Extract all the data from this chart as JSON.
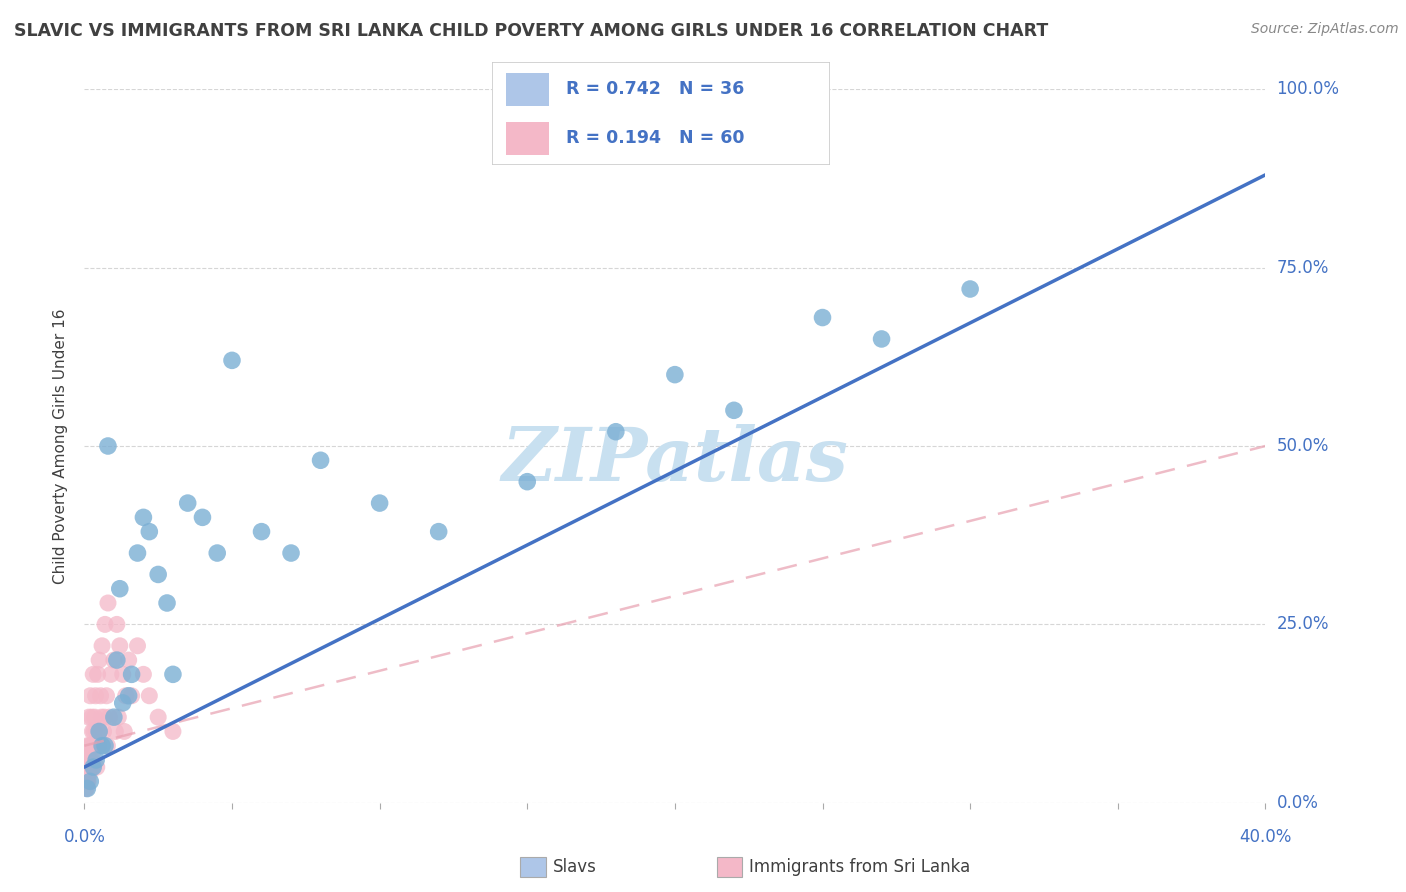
{
  "title": "SLAVIC VS IMMIGRANTS FROM SRI LANKA CHILD POVERTY AMONG GIRLS UNDER 16 CORRELATION CHART",
  "source": "Source: ZipAtlas.com",
  "ylabel": "Child Poverty Among Girls Under 16",
  "ytick_labels": [
    "0.0%",
    "25.0%",
    "50.0%",
    "75.0%",
    "100.0%"
  ],
  "ytick_values": [
    0,
    25,
    50,
    75,
    100
  ],
  "xlim": [
    0,
    40
  ],
  "ylim": [
    0,
    100
  ],
  "slavs_color": "#7bafd4",
  "slavs_edge": "#7bafd4",
  "srilanka_color": "#f4b8c8",
  "srilanka_edge": "#f4b8c8",
  "trend_slavs_color": "#4472c4",
  "trend_srilanka_color": "#e8a0b0",
  "watermark": "ZIPatlas",
  "watermark_color": "#c8e0f0",
  "title_color": "#404040",
  "axis_label_color": "#4472c4",
  "source_color": "#888888",
  "ylabel_color": "#404040",
  "legend_box_color": "#cccccc",
  "legend_text_color": "#4472c4",
  "legend_sq1_color": "#aec6e8",
  "legend_sq2_color": "#f4b8c8",
  "bottom_legend_sq1": "#aec6e8",
  "bottom_legend_sq2": "#f4b8c8",
  "grid_color": "#cccccc",
  "slavs_x": [
    0.3,
    0.5,
    0.6,
    0.8,
    1.0,
    1.2,
    1.5,
    1.8,
    2.0,
    2.2,
    2.5,
    3.0,
    3.5,
    4.0,
    5.0,
    6.0,
    7.0,
    8.0,
    10.0,
    12.0,
    15.0,
    18.0,
    20.0,
    22.0,
    25.0,
    27.0,
    30.0,
    0.2,
    0.4,
    0.7,
    1.1,
    1.3,
    1.6,
    2.8,
    4.5,
    0.1
  ],
  "slavs_y": [
    5,
    10,
    8,
    50,
    12,
    30,
    15,
    35,
    40,
    38,
    32,
    18,
    42,
    40,
    62,
    38,
    35,
    48,
    42,
    38,
    45,
    52,
    60,
    55,
    68,
    65,
    72,
    3,
    6,
    8,
    20,
    14,
    18,
    28,
    35,
    2
  ],
  "srilanka_x": [
    0.05,
    0.08,
    0.1,
    0.12,
    0.14,
    0.15,
    0.16,
    0.18,
    0.19,
    0.2,
    0.22,
    0.23,
    0.25,
    0.26,
    0.27,
    0.28,
    0.3,
    0.32,
    0.33,
    0.35,
    0.36,
    0.38,
    0.4,
    0.42,
    0.45,
    0.48,
    0.5,
    0.52,
    0.55,
    0.58,
    0.6,
    0.65,
    0.68,
    0.7,
    0.75,
    0.78,
    0.8,
    0.85,
    0.9,
    1.0,
    1.05,
    1.1,
    1.15,
    1.2,
    1.3,
    1.35,
    1.4,
    1.5,
    1.6,
    1.8,
    2.0,
    2.2,
    2.5,
    3.0,
    0.06,
    0.07,
    0.09,
    0.11,
    0.13,
    0.17
  ],
  "srilanka_y": [
    3,
    5,
    8,
    3,
    6,
    12,
    4,
    8,
    5,
    15,
    8,
    6,
    12,
    5,
    10,
    7,
    18,
    10,
    8,
    12,
    8,
    15,
    10,
    5,
    18,
    8,
    20,
    10,
    15,
    12,
    22,
    10,
    12,
    25,
    15,
    8,
    28,
    12,
    18,
    20,
    10,
    25,
    12,
    22,
    18,
    10,
    15,
    20,
    15,
    22,
    18,
    15,
    12,
    10,
    2,
    4,
    3,
    5,
    4,
    6
  ],
  "trend_slavs_x0": 0,
  "trend_slavs_y0": 5,
  "trend_slavs_x1": 40,
  "trend_slavs_y1": 88,
  "trend_sri_x0": 0,
  "trend_sri_y0": 8,
  "trend_sri_x1": 40,
  "trend_sri_y1": 50
}
